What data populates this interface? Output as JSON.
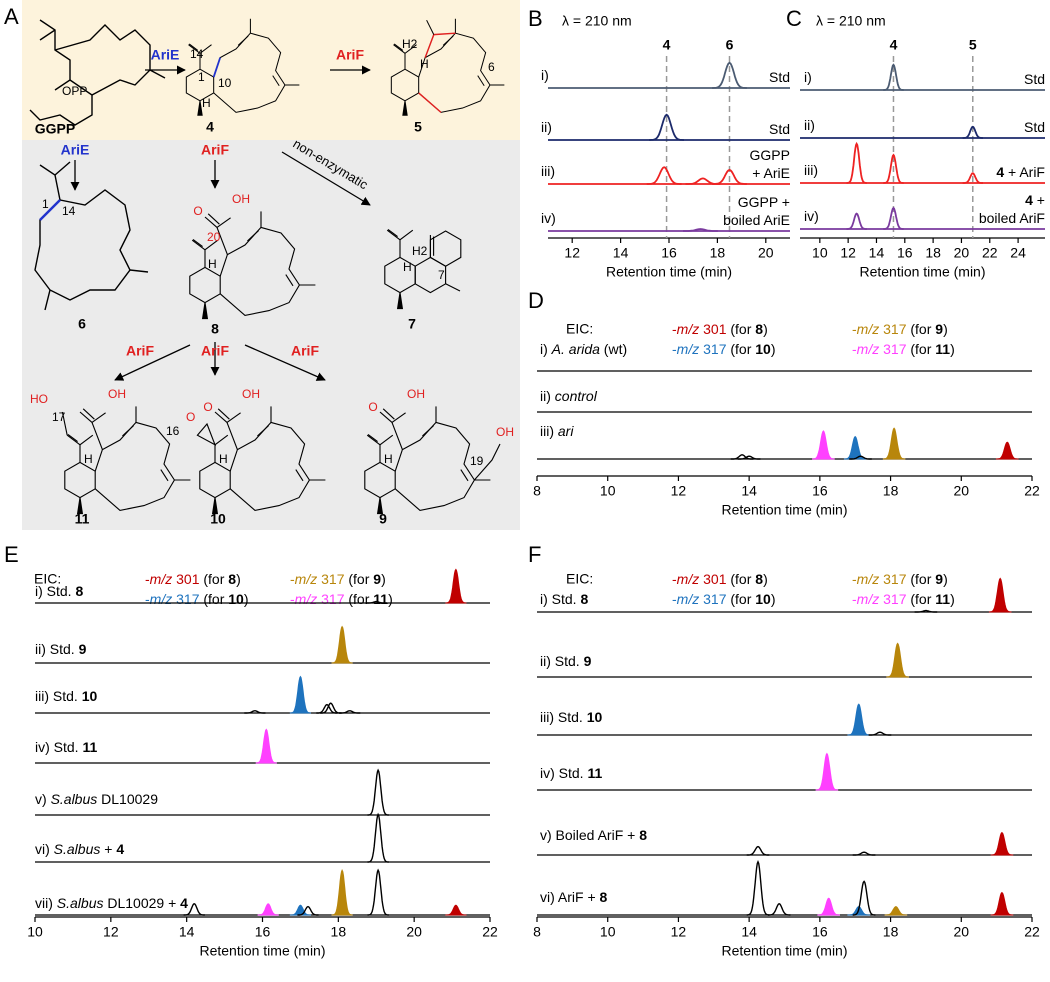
{
  "panel_a": {
    "label": "A",
    "compounds": [
      "GGPP",
      "4",
      "5",
      "6",
      "8",
      "7",
      "11",
      "10",
      "9"
    ],
    "enzymes": [
      "AriE",
      "AriF",
      "AriE",
      "AriF",
      "AriF",
      "AriF",
      "AriF"
    ],
    "note": "non-enzymatic",
    "atoms": [
      "OPP",
      "14",
      "1",
      "10",
      "H",
      "H2",
      "H",
      "6",
      "14",
      "1",
      "O",
      "OH",
      "20",
      "H",
      "H2",
      "H",
      "7",
      "HO",
      "17",
      "OH",
      "O",
      "16",
      "O",
      "OH",
      "O",
      "OH",
      "OH",
      "19",
      "H",
      "H",
      "H"
    ]
  },
  "panel_b": {
    "label": "B",
    "detector": "λ = 210 nm",
    "xlim": [
      11,
      21
    ],
    "xticks": [
      12,
      14,
      16,
      18,
      20
    ],
    "xlabel": "Retention time (min)",
    "markers": [
      {
        "label": "4",
        "rt": 15.9
      },
      {
        "label": "6",
        "rt": 18.5
      }
    ],
    "traces": [
      {
        "label": [
          {
            "t": "i)"
          }
        ],
        "right": [
          [
            {
              "t": "Std"
            }
          ]
        ],
        "color": "#4b5b72",
        "peaks": [
          {
            "rt": 18.5,
            "h": 0.9
          }
        ]
      },
      {
        "label": [
          {
            "t": "ii)"
          }
        ],
        "right": [
          [
            {
              "t": "Std"
            }
          ]
        ],
        "color": "#1c2a6b",
        "peaks": [
          {
            "rt": 15.9,
            "h": 0.9
          }
        ]
      },
      {
        "label": [
          {
            "t": "iii)"
          }
        ],
        "right": [
          [
            {
              "t": "GGPP"
            }
          ],
          [
            {
              "t": "+ AriE"
            }
          ]
        ],
        "color": "#ee2222",
        "peaks": [
          {
            "rt": 15.8,
            "h": 0.6
          },
          {
            "rt": 17.4,
            "h": 0.2
          },
          {
            "rt": 18.5,
            "h": 0.5
          }
        ]
      },
      {
        "label": [
          {
            "t": "iv)"
          }
        ],
        "right": [
          [
            {
              "t": "GGPP +"
            }
          ],
          [
            {
              "t": "boiled AriE"
            }
          ]
        ],
        "color": "#7a3a9e",
        "peaks": [
          {
            "rt": 17.3,
            "h": 0.07
          }
        ]
      }
    ]
  },
  "panel_c": {
    "label": "C",
    "detector": "λ = 210 nm",
    "xlim": [
      8.6,
      25.9
    ],
    "xticks": [
      10,
      12,
      14,
      16,
      18,
      20,
      22,
      24
    ],
    "xlabel": "Retention time (min)",
    "markers": [
      {
        "label": "4",
        "rt": 15.2
      },
      {
        "label": "5",
        "rt": 20.8
      }
    ],
    "traces": [
      {
        "label": [
          {
            "t": "i)"
          }
        ],
        "right": [
          [
            {
              "t": "Std"
            }
          ]
        ],
        "color": "#4b5b72",
        "peaks": [
          {
            "rt": 15.2,
            "h": 0.9
          }
        ]
      },
      {
        "label": [
          {
            "t": "ii)"
          }
        ],
        "right": [
          [
            {
              "t": "Std"
            }
          ]
        ],
        "color": "#1c2a6b",
        "peaks": [
          {
            "rt": 20.8,
            "h": 0.4
          }
        ]
      },
      {
        "label": [
          {
            "t": "iii)"
          }
        ],
        "right": [
          [
            {
              "t": "4",
              "b": true
            },
            {
              "t": " + AriF"
            }
          ]
        ],
        "color": "#ee2222",
        "peaks": [
          {
            "rt": 12.6,
            "h": 1.4
          },
          {
            "rt": 15.2,
            "h": 1.0
          },
          {
            "rt": 20.8,
            "h": 0.35
          }
        ]
      },
      {
        "label": [
          {
            "t": "iv)"
          }
        ],
        "right": [
          [
            {
              "t": "4",
              "b": true
            },
            {
              "t": " +"
            }
          ],
          [
            {
              "t": "boiled AriF"
            }
          ]
        ],
        "color": "#7a3a9e",
        "peaks": [
          {
            "rt": 12.6,
            "h": 0.55
          },
          {
            "rt": 15.2,
            "h": 0.75
          }
        ]
      }
    ]
  },
  "panel_d": {
    "label": "D",
    "eic": "EIC:",
    "xlim": [
      8,
      22
    ],
    "xticks": [
      8,
      10,
      12,
      14,
      16,
      18,
      20,
      22
    ],
    "xlabel": "Retention time (min)",
    "legend": [
      [
        {
          "t": "-",
          "c": "#c00000"
        },
        {
          "t": "m/z",
          "i": true,
          "c": "#c00000"
        },
        {
          "t": " 301",
          "c": "#c00000"
        },
        {
          "t": " (for "
        },
        {
          "t": "8",
          "b": true
        },
        {
          "t": ")"
        }
      ],
      [
        {
          "t": "-",
          "c": "#b8860b"
        },
        {
          "t": "m/z",
          "i": true,
          "c": "#b8860b"
        },
        {
          "t": " 317",
          "c": "#b8860b"
        },
        {
          "t": " (for "
        },
        {
          "t": "9",
          "b": true
        },
        {
          "t": ")"
        }
      ],
      [
        {
          "t": "-",
          "c": "#1e73be"
        },
        {
          "t": "m/z",
          "i": true,
          "c": "#1e73be"
        },
        {
          "t": " 317",
          "c": "#1e73be"
        },
        {
          "t": " (for "
        },
        {
          "t": "10",
          "b": true
        },
        {
          "t": ")"
        }
      ],
      [
        {
          "t": "-",
          "c": "#ff40ff"
        },
        {
          "t": "m/z",
          "i": true,
          "c": "#ff40ff"
        },
        {
          "t": " 317",
          "c": "#ff40ff"
        },
        {
          "t": " (for "
        },
        {
          "t": "11",
          "b": true
        },
        {
          "t": ")"
        }
      ]
    ],
    "traces": [
      {
        "label": [
          {
            "t": "i) "
          },
          {
            "t": "A. arida",
            "i": true
          },
          {
            "t": " (wt)"
          }
        ],
        "color": "#000000",
        "peaks": []
      },
      {
        "label": [
          {
            "t": "ii) "
          },
          {
            "t": "control",
            "i": true
          }
        ],
        "color": "#000000",
        "peaks": []
      },
      {
        "label": [
          {
            "t": "iii) "
          },
          {
            "t": "ari",
            "i": true
          }
        ],
        "color": "#000000",
        "peaks": [
          {
            "rt": 13.8,
            "h": 0.15
          },
          {
            "rt": 14.0,
            "h": 0.1
          },
          {
            "rt": 16.1,
            "h": 1.0,
            "color": "#ff40ff"
          },
          {
            "rt": 17.0,
            "h": 0.8,
            "color": "#1e73be"
          },
          {
            "rt": 17.15,
            "h": 0.1
          },
          {
            "rt": 18.1,
            "h": 1.1,
            "color": "#b8860b"
          },
          {
            "rt": 21.3,
            "h": 0.6,
            "color": "#c00000"
          }
        ]
      }
    ]
  },
  "panel_e": {
    "label": "E",
    "eic": "EIC:",
    "xlim": [
      10,
      22
    ],
    "xticks": [
      10,
      12,
      14,
      16,
      18,
      20,
      22
    ],
    "xlabel": "Retention time (min)",
    "legend": [
      [
        {
          "t": "-",
          "c": "#c00000"
        },
        {
          "t": "m/z",
          "i": true,
          "c": "#c00000"
        },
        {
          "t": " 301",
          "c": "#c00000"
        },
        {
          "t": " (for "
        },
        {
          "t": "8",
          "b": true
        },
        {
          "t": ")"
        }
      ],
      [
        {
          "t": "-",
          "c": "#b8860b"
        },
        {
          "t": "m/z",
          "i": true,
          "c": "#b8860b"
        },
        {
          "t": " 317",
          "c": "#b8860b"
        },
        {
          "t": " (for "
        },
        {
          "t": "9",
          "b": true
        },
        {
          "t": ")"
        }
      ],
      [
        {
          "t": "-",
          "c": "#1e73be"
        },
        {
          "t": "m/z",
          "i": true,
          "c": "#1e73be"
        },
        {
          "t": " 317",
          "c": "#1e73be"
        },
        {
          "t": " (for "
        },
        {
          "t": "10",
          "b": true
        },
        {
          "t": ")"
        }
      ],
      [
        {
          "t": "-",
          "c": "#ff40ff"
        },
        {
          "t": "m/z",
          "i": true,
          "c": "#ff40ff"
        },
        {
          "t": " 317",
          "c": "#ff40ff"
        },
        {
          "t": " (for "
        },
        {
          "t": "11",
          "b": true
        },
        {
          "t": ")"
        }
      ]
    ],
    "traces": [
      {
        "label": [
          {
            "t": "i) Std. "
          },
          {
            "t": "8",
            "b": true
          }
        ],
        "color": "#000000",
        "peaks": [
          {
            "rt": 19.0,
            "h": 0.05
          },
          {
            "rt": 21.1,
            "h": 1.2,
            "color": "#c00000"
          }
        ]
      },
      {
        "label": [
          {
            "t": "ii) Std. "
          },
          {
            "t": "9",
            "b": true
          }
        ],
        "color": "#000000",
        "peaks": [
          {
            "rt": 18.1,
            "h": 1.3,
            "color": "#b8860b"
          }
        ]
      },
      {
        "label": [
          {
            "t": "iii) Std. "
          },
          {
            "t": "10",
            "b": true
          }
        ],
        "color": "#000000",
        "peaks": [
          {
            "rt": 15.8,
            "h": 0.08
          },
          {
            "rt": 17.0,
            "h": 1.3,
            "color": "#1e73be"
          },
          {
            "rt": 17.7,
            "h": 0.3
          },
          {
            "rt": 17.8,
            "h": 0.35
          },
          {
            "rt": 18.3,
            "h": 0.08
          }
        ]
      },
      {
        "label": [
          {
            "t": "iv) Std. "
          },
          {
            "t": "11",
            "b": true
          }
        ],
        "color": "#000000",
        "peaks": [
          {
            "rt": 16.1,
            "h": 1.2,
            "color": "#ff40ff"
          }
        ]
      },
      {
        "label": [
          {
            "t": "v) "
          },
          {
            "t": "S.albus",
            "i": true
          },
          {
            "t": " DL10029"
          }
        ],
        "color": "#000000",
        "peaks": [
          {
            "rt": 19.05,
            "h": 1.6
          }
        ]
      },
      {
        "label": [
          {
            "t": "vi) "
          },
          {
            "t": "S.albus",
            "i": true
          },
          {
            "t": " + "
          },
          {
            "t": "4",
            "b": true
          }
        ],
        "color": "#000000",
        "peaks": [
          {
            "rt": 19.05,
            "h": 1.7
          }
        ]
      },
      {
        "label": [
          {
            "t": "vii) "
          },
          {
            "t": "S.albus",
            "i": true
          },
          {
            "t": " DL10029 + "
          },
          {
            "t": "4",
            "b": true
          }
        ],
        "color": "#000000",
        "peaks": [
          {
            "rt": 14.2,
            "h": 0.4
          },
          {
            "rt": 16.15,
            "h": 0.4,
            "color": "#ff40ff"
          },
          {
            "rt": 17.0,
            "h": 0.35,
            "color": "#1e73be"
          },
          {
            "rt": 17.2,
            "h": 0.3
          },
          {
            "rt": 18.1,
            "h": 1.6,
            "color": "#b8860b"
          },
          {
            "rt": 19.05,
            "h": 1.6
          },
          {
            "rt": 21.1,
            "h": 0.35,
            "color": "#c00000"
          }
        ]
      }
    ]
  },
  "panel_f": {
    "label": "F",
    "eic": "EIC:",
    "xlim": [
      8,
      22
    ],
    "xticks": [
      8,
      10,
      12,
      14,
      16,
      18,
      20,
      22
    ],
    "xlabel": "Retention time (min)",
    "legend": [
      [
        {
          "t": "-",
          "c": "#c00000"
        },
        {
          "t": "m/z",
          "i": true,
          "c": "#c00000"
        },
        {
          "t": " 301",
          "c": "#c00000"
        },
        {
          "t": " (for "
        },
        {
          "t": "8",
          "b": true
        },
        {
          "t": ")"
        }
      ],
      [
        {
          "t": "-",
          "c": "#b8860b"
        },
        {
          "t": "m/z",
          "i": true,
          "c": "#b8860b"
        },
        {
          "t": " 317",
          "c": "#b8860b"
        },
        {
          "t": " (for "
        },
        {
          "t": "9",
          "b": true
        },
        {
          "t": ")"
        }
      ],
      [
        {
          "t": "-",
          "c": "#1e73be"
        },
        {
          "t": "m/z",
          "i": true,
          "c": "#1e73be"
        },
        {
          "t": " 317",
          "c": "#1e73be"
        },
        {
          "t": " (for "
        },
        {
          "t": "10",
          "b": true
        },
        {
          "t": ")"
        }
      ],
      [
        {
          "t": "-",
          "c": "#ff40ff"
        },
        {
          "t": "m/z",
          "i": true,
          "c": "#ff40ff"
        },
        {
          "t": " 317",
          "c": "#ff40ff"
        },
        {
          "t": " (for "
        },
        {
          "t": "11",
          "b": true
        },
        {
          "t": ")"
        }
      ]
    ],
    "traces": [
      {
        "label": [
          {
            "t": "i) Std. "
          },
          {
            "t": "8",
            "b": true
          }
        ],
        "color": "#000000",
        "peaks": [
          {
            "rt": 19.0,
            "h": 0.05
          },
          {
            "rt": 21.1,
            "h": 1.2,
            "color": "#c00000"
          }
        ]
      },
      {
        "label": [
          {
            "t": "ii) Std. "
          },
          {
            "t": "9",
            "b": true
          }
        ],
        "color": "#000000",
        "peaks": [
          {
            "rt": 18.2,
            "h": 1.2,
            "color": "#b8860b"
          }
        ]
      },
      {
        "label": [
          {
            "t": "iii) Std. "
          },
          {
            "t": "10",
            "b": true
          }
        ],
        "color": "#000000",
        "peaks": [
          {
            "rt": 17.1,
            "h": 1.1,
            "color": "#1e73be"
          },
          {
            "rt": 17.7,
            "h": 0.1
          }
        ]
      },
      {
        "label": [
          {
            "t": "iv) Std. "
          },
          {
            "t": "11",
            "b": true
          }
        ],
        "color": "#000000",
        "peaks": [
          {
            "rt": 16.2,
            "h": 1.3,
            "color": "#ff40ff"
          }
        ]
      },
      {
        "label": [
          {
            "t": "v) Boiled AriF + "
          },
          {
            "t": "8",
            "b": true
          }
        ],
        "color": "#000000",
        "peaks": [
          {
            "rt": 14.25,
            "h": 0.3
          },
          {
            "rt": 17.25,
            "h": 0.1
          },
          {
            "rt": 21.15,
            "h": 0.8,
            "color": "#c00000"
          }
        ]
      },
      {
        "label": [
          {
            "t": "vi) AriF + "
          },
          {
            "t": "8",
            "b": true
          }
        ],
        "color": "#000000",
        "peaks": [
          {
            "rt": 14.25,
            "h": 1.9
          },
          {
            "rt": 14.85,
            "h": 0.4
          },
          {
            "rt": 16.25,
            "h": 0.6,
            "color": "#ff40ff"
          },
          {
            "rt": 17.1,
            "h": 0.3,
            "color": "#1e73be"
          },
          {
            "rt": 17.25,
            "h": 1.2
          },
          {
            "rt": 18.15,
            "h": 0.3,
            "color": "#b8860b"
          },
          {
            "rt": 21.15,
            "h": 0.8,
            "color": "#c00000"
          }
        ]
      }
    ]
  }
}
